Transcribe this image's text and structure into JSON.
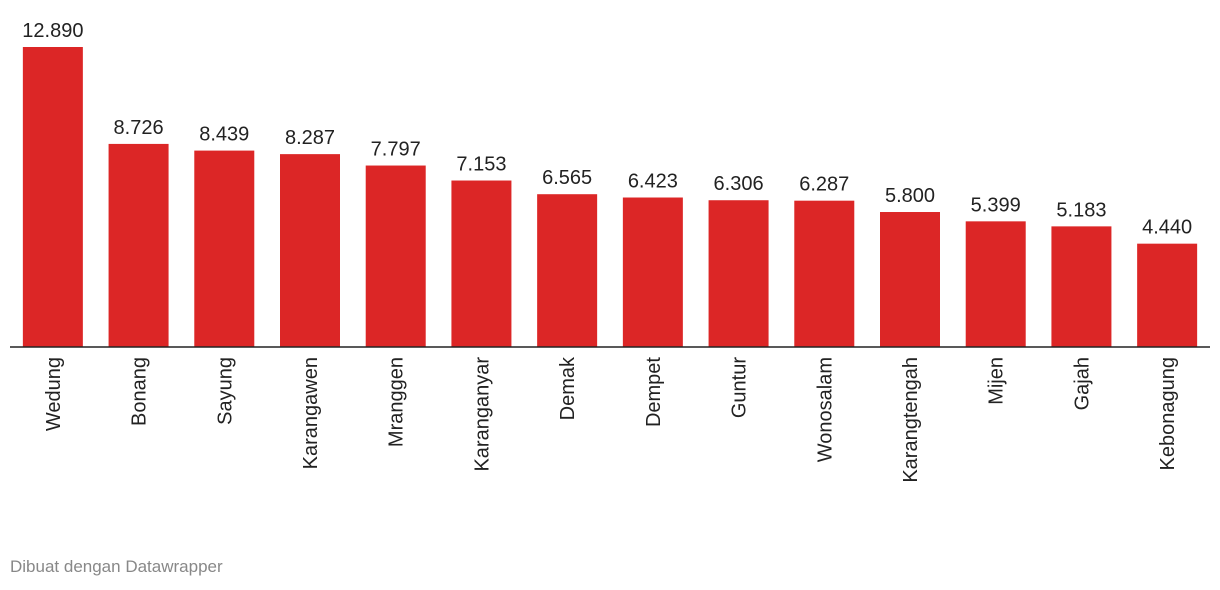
{
  "chart_data": {
    "type": "bar",
    "categories": [
      "Wedung",
      "Bonang",
      "Sayung",
      "Karangawen",
      "Mranggen",
      "Karanganyar",
      "Demak",
      "Dempet",
      "Guntur",
      "Wonosalam",
      "Karangtengah",
      "Mijen",
      "Gajah",
      "Kebonagung"
    ],
    "values": [
      12890,
      8726,
      8439,
      8287,
      7797,
      7153,
      6565,
      6423,
      6306,
      6287,
      5800,
      5399,
      5183,
      4440
    ],
    "value_labels": [
      "12.890",
      "8.726",
      "8.439",
      "8.287",
      "7.797",
      "7.153",
      "6.565",
      "6.423",
      "6.306",
      "6.287",
      "5.800",
      "5.399",
      "5.183",
      "4.440"
    ],
    "color": "#dc2626"
  },
  "footer": "Dibuat dengan Datawrapper"
}
